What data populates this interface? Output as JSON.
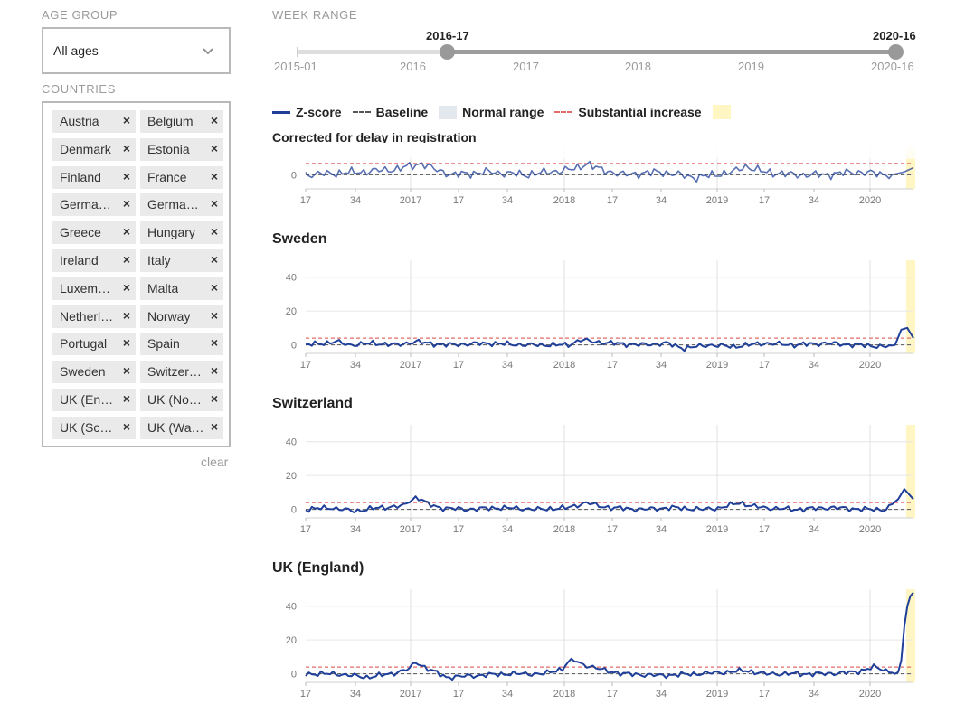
{
  "filters": {
    "age_group_label": "AGE GROUP",
    "age_group_value": "All ages",
    "countries_label": "COUNTRIES",
    "countries": [
      "Austria",
      "Belgium",
      "Denmark",
      "Estonia",
      "Finland",
      "France",
      "Germa…",
      "Germa…",
      "Greece",
      "Hungary",
      "Ireland",
      "Italy",
      "Luxem…",
      "Malta",
      "Netherl…",
      "Norway",
      "Portugal",
      "Spain",
      "Sweden",
      "Switzer…",
      "UK (En…",
      "UK (No…",
      "UK (Sc…",
      "UK (Wa…"
    ],
    "remove_glyph": "×",
    "clear_label": "clear"
  },
  "week_range": {
    "label": "WEEK RANGE",
    "selected_start": "2016-17",
    "selected_end": "2020-16",
    "ticks": [
      "2015-01",
      "2016",
      "2017",
      "2018",
      "2019",
      "2020-16"
    ],
    "selected_start_fraction": 0.25,
    "selected_end_fraction": 1.0
  },
  "legend": {
    "zscore": "Z-score",
    "baseline": "Baseline",
    "normal_range": "Normal range",
    "substantial_increase": "Substantial increase"
  },
  "colors": {
    "zscore": "#1f3f99",
    "baseline": "#555555",
    "normal_range": "#e3e8ee",
    "substantial": "#e36b6b",
    "highlight": "#fff6c4"
  },
  "subtitle": "Corrected for delay in registration",
  "x_tick_labels": [
    "17",
    "34",
    "2017",
    "17",
    "34",
    "2018",
    "17",
    "34",
    "2019",
    "17",
    "34",
    "2020"
  ],
  "chart_data": [
    {
      "type": "line",
      "title": "",
      "ylim": [
        -5,
        10
      ],
      "yticks": [
        0
      ],
      "series": [
        {
          "name": "Z-score",
          "key_points": [
            [
              0,
              0
            ],
            [
              18,
              1
            ],
            [
              30,
              2
            ],
            [
              38,
              4
            ],
            [
              42,
              2
            ],
            [
              48,
              0
            ],
            [
              60,
              1
            ],
            [
              72,
              0
            ],
            [
              88,
              2
            ],
            [
              92,
              4
            ],
            [
              96,
              2
            ],
            [
              104,
              0
            ],
            [
              116,
              1
            ],
            [
              128,
              -1
            ],
            [
              140,
              1
            ],
            [
              144,
              3
            ],
            [
              150,
              1
            ],
            [
              160,
              0
            ],
            [
              170,
              0
            ],
            [
              180,
              1
            ],
            [
              192,
              0
            ],
            [
              196,
              1
            ],
            [
              200,
              3
            ]
          ]
        }
      ]
    },
    {
      "type": "line",
      "title": "Sweden",
      "ylim": [
        -5,
        50
      ],
      "yticks": [
        0,
        20,
        40
      ],
      "series": [
        {
          "name": "Z-score",
          "key_points": [
            [
              0,
              0
            ],
            [
              6,
              1
            ],
            [
              10,
              2
            ],
            [
              14,
              0
            ],
            [
              22,
              1
            ],
            [
              30,
              0
            ],
            [
              36,
              2
            ],
            [
              40,
              1
            ],
            [
              46,
              0
            ],
            [
              60,
              1
            ],
            [
              72,
              0
            ],
            [
              86,
              0
            ],
            [
              90,
              3
            ],
            [
              94,
              2
            ],
            [
              100,
              1
            ],
            [
              110,
              0
            ],
            [
              118,
              1
            ],
            [
              124,
              -2
            ],
            [
              132,
              0
            ],
            [
              140,
              -1
            ],
            [
              150,
              1
            ],
            [
              160,
              0
            ],
            [
              170,
              1
            ],
            [
              180,
              0
            ],
            [
              190,
              -1
            ],
            [
              193,
              0
            ],
            [
              195,
              9
            ],
            [
              197,
              10
            ],
            [
              199,
              4
            ]
          ]
        }
      ]
    },
    {
      "type": "line",
      "title": "Switzerland",
      "ylim": [
        -5,
        50
      ],
      "yticks": [
        0,
        20,
        40
      ],
      "series": [
        {
          "name": "Z-score",
          "key_points": [
            [
              0,
              0
            ],
            [
              8,
              1
            ],
            [
              16,
              -1
            ],
            [
              24,
              1
            ],
            [
              32,
              2
            ],
            [
              34,
              5
            ],
            [
              36,
              7
            ],
            [
              38,
              6
            ],
            [
              40,
              3
            ],
            [
              44,
              1
            ],
            [
              52,
              0
            ],
            [
              64,
              1
            ],
            [
              76,
              0
            ],
            [
              86,
              1
            ],
            [
              92,
              4
            ],
            [
              96,
              2
            ],
            [
              100,
              1
            ],
            [
              110,
              0
            ],
            [
              120,
              1
            ],
            [
              130,
              0
            ],
            [
              136,
              1
            ],
            [
              142,
              4
            ],
            [
              146,
              2
            ],
            [
              150,
              1
            ],
            [
              160,
              0
            ],
            [
              172,
              1
            ],
            [
              184,
              0
            ],
            [
              190,
              0
            ],
            [
              194,
              6
            ],
            [
              196,
              12
            ],
            [
              198,
              8
            ],
            [
              199,
              6
            ]
          ]
        }
      ]
    },
    {
      "type": "line",
      "title": "UK (England)",
      "ylim": [
        -5,
        50
      ],
      "yticks": [
        0,
        20,
        40
      ],
      "series": [
        {
          "name": "Z-score",
          "key_points": [
            [
              0,
              0
            ],
            [
              10,
              0
            ],
            [
              20,
              -2
            ],
            [
              28,
              0
            ],
            [
              34,
              3
            ],
            [
              36,
              7
            ],
            [
              40,
              3
            ],
            [
              46,
              -2
            ],
            [
              56,
              -1
            ],
            [
              66,
              0
            ],
            [
              78,
              0
            ],
            [
              84,
              3
            ],
            [
              86,
              7
            ],
            [
              88,
              8
            ],
            [
              90,
              6
            ],
            [
              94,
              4
            ],
            [
              98,
              2
            ],
            [
              104,
              0
            ],
            [
              116,
              -1
            ],
            [
              128,
              0
            ],
            [
              138,
              1
            ],
            [
              144,
              2
            ],
            [
              150,
              0
            ],
            [
              160,
              0
            ],
            [
              170,
              0
            ],
            [
              180,
              1
            ],
            [
              186,
              4
            ],
            [
              190,
              2
            ],
            [
              193,
              0
            ],
            [
              194,
              1
            ],
            [
              195,
              8
            ],
            [
              196,
              28
            ],
            [
              197,
              40
            ],
            [
              198,
              46
            ],
            [
              199,
              48
            ]
          ]
        }
      ]
    }
  ]
}
